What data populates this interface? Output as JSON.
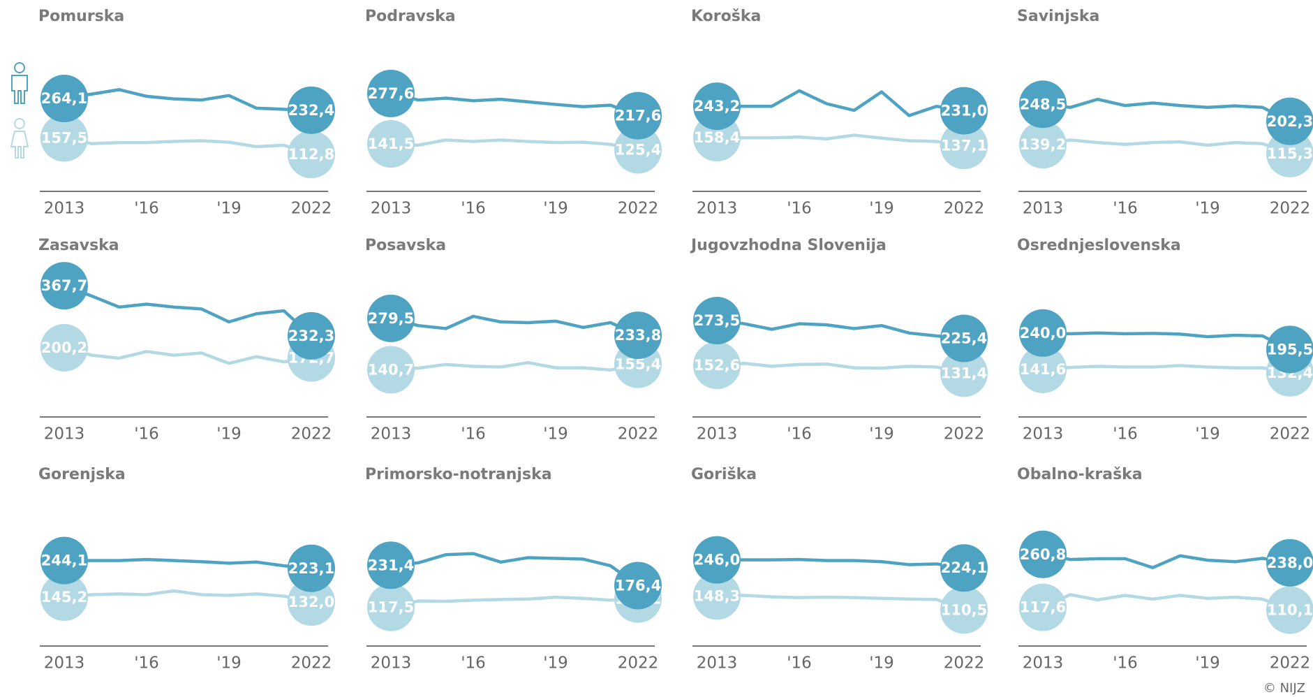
{
  "credit": "© NIJZ",
  "chart_data": [
    {
      "type": "line",
      "title": "Pomurska",
      "categories": [
        "2013",
        null,
        null,
        "'16",
        null,
        null,
        "'19",
        null,
        null,
        "2022"
      ],
      "ylim": [
        0,
        400
      ],
      "series": [
        {
          "color": "#4ea3c3",
          "values": [
            264.1,
            276,
            288,
            270,
            263,
            260,
            272,
            238,
            235,
            232.4
          ],
          "value_labels": [
            "264,1",
            null,
            null,
            null,
            null,
            null,
            null,
            null,
            null,
            "232,4"
          ]
        },
        {
          "color": "#b3d9e4",
          "values": [
            157.5,
            142,
            145,
            145,
            148,
            150,
            146,
            134,
            138,
            112.8
          ],
          "value_labels": [
            "157,5",
            null,
            null,
            null,
            null,
            null,
            null,
            null,
            null,
            "112,8"
          ]
        }
      ]
    },
    {
      "type": "line",
      "title": "Podravska",
      "categories": [
        "2013",
        null,
        null,
        "'16",
        null,
        null,
        "'19",
        null,
        null,
        "2022"
      ],
      "ylim": [
        0,
        400
      ],
      "series": [
        {
          "color": "#4ea3c3",
          "values": [
            277.6,
            260,
            265,
            258,
            262,
            255,
            248,
            242,
            246,
            217.6
          ],
          "value_labels": [
            "277,6",
            null,
            null,
            null,
            null,
            null,
            null,
            null,
            null,
            "217,6"
          ]
        },
        {
          "color": "#b3d9e4",
          "values": [
            141.5,
            138,
            152,
            148,
            152,
            148,
            145,
            146,
            140,
            125.4
          ],
          "value_labels": [
            "141,5",
            null,
            null,
            null,
            null,
            null,
            null,
            null,
            null,
            "125,4"
          ]
        }
      ]
    },
    {
      "type": "line",
      "title": "Koroška",
      "categories": [
        "2013",
        null,
        null,
        "'16",
        null,
        null,
        "'19",
        null,
        null,
        "2022"
      ],
      "ylim": [
        0,
        400
      ],
      "series": [
        {
          "color": "#4ea3c3",
          "values": [
            243.2,
            243,
            243,
            285,
            250,
            232,
            282,
            218,
            243,
            231.0
          ],
          "value_labels": [
            "243,2",
            null,
            null,
            null,
            null,
            null,
            null,
            null,
            null,
            "231,0"
          ]
        },
        {
          "color": "#b3d9e4",
          "values": [
            158.4,
            158,
            158,
            160,
            155,
            165,
            157,
            150,
            148,
            137.1
          ],
          "value_labels": [
            "158,4",
            null,
            null,
            null,
            null,
            null,
            null,
            null,
            null,
            "137,1"
          ]
        }
      ]
    },
    {
      "type": "line",
      "title": "Savinjska",
      "categories": [
        "2013",
        null,
        null,
        "'16",
        null,
        null,
        "'19",
        null,
        null,
        "2022"
      ],
      "ylim": [
        0,
        400
      ],
      "series": [
        {
          "color": "#4ea3c3",
          "values": [
            248.5,
            240,
            262,
            245,
            252,
            245,
            240,
            244,
            240,
            202.3
          ],
          "value_labels": [
            "248,5",
            null,
            null,
            null,
            null,
            null,
            null,
            null,
            null,
            "202,3"
          ]
        },
        {
          "color": "#b3d9e4",
          "values": [
            139.2,
            152,
            145,
            140,
            145,
            147,
            138,
            145,
            142,
            115.3
          ],
          "value_labels": [
            "139,2",
            null,
            null,
            null,
            null,
            null,
            null,
            null,
            null,
            "115,3"
          ]
        }
      ]
    },
    {
      "type": "line",
      "title": "Zasavska",
      "categories": [
        "2013",
        null,
        null,
        "'16",
        null,
        null,
        "'19",
        null,
        null,
        "2022"
      ],
      "ylim": [
        0,
        400
      ],
      "series": [
        {
          "color": "#4ea3c3",
          "values": [
            367.7,
            340,
            310,
            318,
            310,
            305,
            270,
            292,
            300,
            232.3
          ],
          "value_labels": [
            "367,7",
            null,
            null,
            null,
            null,
            null,
            null,
            null,
            null,
            "232,3"
          ]
        },
        {
          "color": "#b3d9e4",
          "values": [
            200.2,
            180,
            172,
            190,
            180,
            186,
            158,
            176,
            162,
            172.7
          ],
          "value_labels": [
            "200,2",
            null,
            null,
            null,
            null,
            null,
            null,
            null,
            null,
            "172,7"
          ]
        }
      ]
    },
    {
      "type": "line",
      "title": "Posavska",
      "categories": [
        "2013",
        null,
        null,
        "'16",
        null,
        null,
        "'19",
        null,
        null,
        "2022"
      ],
      "ylim": [
        0,
        400
      ],
      "series": [
        {
          "color": "#4ea3c3",
          "values": [
            279.5,
            260,
            252,
            285,
            270,
            268,
            272,
            255,
            268,
            233.8
          ],
          "value_labels": [
            "279,5",
            null,
            null,
            null,
            null,
            null,
            null,
            null,
            null,
            "233,8"
          ]
        },
        {
          "color": "#b3d9e4",
          "values": [
            140.7,
            145,
            155,
            150,
            148,
            160,
            146,
            146,
            140,
            155.4
          ],
          "value_labels": [
            "140,7",
            null,
            null,
            null,
            null,
            null,
            null,
            null,
            null,
            "155,4"
          ]
        }
      ]
    },
    {
      "type": "line",
      "title": "Jugovzhodna Slovenija",
      "categories": [
        "2013",
        null,
        null,
        "'16",
        null,
        null,
        "'19",
        null,
        null,
        "2022"
      ],
      "ylim": [
        0,
        400
      ],
      "series": [
        {
          "color": "#4ea3c3",
          "values": [
            273.5,
            265,
            250,
            265,
            262,
            252,
            260,
            240,
            232,
            225.4
          ],
          "value_labels": [
            "273,5",
            null,
            null,
            null,
            null,
            null,
            null,
            null,
            null,
            "225,4"
          ]
        },
        {
          "color": "#b3d9e4",
          "values": [
            152.6,
            158,
            150,
            155,
            156,
            146,
            145,
            150,
            148,
            131.4
          ],
          "value_labels": [
            "152,6",
            null,
            null,
            null,
            null,
            null,
            null,
            null,
            null,
            "131,4"
          ]
        }
      ]
    },
    {
      "type": "line",
      "title": "Osrednjeslovenska",
      "categories": [
        "2013",
        null,
        null,
        "'16",
        null,
        null,
        "'19",
        null,
        null,
        "2022"
      ],
      "ylim": [
        0,
        400
      ],
      "series": [
        {
          "color": "#4ea3c3",
          "values": [
            240.0,
            238,
            240,
            238,
            239,
            237,
            230,
            234,
            232,
            195.5
          ],
          "value_labels": [
            "240,0",
            null,
            null,
            null,
            null,
            null,
            null,
            null,
            null,
            "195,5"
          ]
        },
        {
          "color": "#b3d9e4",
          "values": [
            141.6,
            147,
            150,
            148,
            148,
            152,
            148,
            146,
            146,
            132.4
          ],
          "value_labels": [
            "141,6",
            null,
            null,
            null,
            null,
            null,
            null,
            null,
            null,
            "132,4"
          ]
        }
      ]
    },
    {
      "type": "line",
      "title": "Gorenjska",
      "categories": [
        "2013",
        null,
        null,
        "'16",
        null,
        null,
        "'19",
        null,
        null,
        "2022"
      ],
      "ylim": [
        0,
        400
      ],
      "series": [
        {
          "color": "#4ea3c3",
          "values": [
            244.1,
            244,
            244,
            247,
            244,
            241,
            237,
            240,
            230,
            223.1
          ],
          "value_labels": [
            "244,1",
            null,
            null,
            null,
            null,
            null,
            null,
            null,
            null,
            "223,1"
          ]
        },
        {
          "color": "#b3d9e4",
          "values": [
            145.2,
            152,
            154,
            152,
            162,
            152,
            150,
            154,
            148,
            132.0
          ],
          "value_labels": [
            "145,2",
            null,
            null,
            null,
            null,
            null,
            null,
            null,
            null,
            "132,0"
          ]
        }
      ]
    },
    {
      "type": "line",
      "title": "Primorsko-notranjska",
      "categories": [
        "2013",
        null,
        null,
        "'16",
        null,
        null,
        "'19",
        null,
        null,
        "2022"
      ],
      "ylim": [
        0,
        400
      ],
      "series": [
        {
          "color": "#4ea3c3",
          "values": [
            231.4,
            238,
            260,
            263,
            240,
            252,
            250,
            248,
            230,
            176.4
          ],
          "value_labels": [
            "231,4",
            null,
            null,
            null,
            null,
            null,
            null,
            null,
            null,
            "176,4"
          ]
        },
        {
          "color": "#b3d9e4",
          "values": [
            117.5,
            135,
            134,
            137,
            139,
            140,
            145,
            142,
            137,
            140.2
          ],
          "value_labels": [
            "117,5",
            null,
            null,
            null,
            null,
            null,
            null,
            null,
            null,
            "140,2"
          ]
        }
      ]
    },
    {
      "type": "line",
      "title": "Goriška",
      "categories": [
        "2013",
        null,
        null,
        "'16",
        null,
        null,
        "'19",
        null,
        null,
        "2022"
      ],
      "ylim": [
        0,
        400
      ],
      "series": [
        {
          "color": "#4ea3c3",
          "values": [
            246.0,
            246,
            246,
            247,
            244,
            244,
            241,
            233,
            235,
            224.1
          ],
          "value_labels": [
            "246,0",
            null,
            null,
            null,
            null,
            null,
            null,
            null,
            null,
            "224,1"
          ]
        },
        {
          "color": "#b3d9e4",
          "values": [
            148.3,
            150,
            146,
            144,
            145,
            144,
            142,
            140,
            139,
            110.5
          ],
          "value_labels": [
            "148,3",
            null,
            null,
            null,
            null,
            null,
            null,
            null,
            null,
            "110,5"
          ]
        }
      ]
    },
    {
      "type": "line",
      "title": "Obalno-kraška",
      "categories": [
        "2013",
        null,
        null,
        "'16",
        null,
        null,
        "'19",
        null,
        null,
        "2022"
      ],
      "ylim": [
        0,
        400
      ],
      "series": [
        {
          "color": "#4ea3c3",
          "values": [
            260.8,
            247,
            249,
            249,
            225,
            257,
            245,
            241,
            250,
            238.0
          ],
          "value_labels": [
            "260,8",
            null,
            null,
            null,
            null,
            null,
            null,
            null,
            null,
            "238,0"
          ]
        },
        {
          "color": "#b3d9e4",
          "values": [
            117.6,
            152,
            138,
            150,
            140,
            150,
            142,
            145,
            140,
            110.1
          ],
          "value_labels": [
            "117,6",
            null,
            null,
            null,
            null,
            null,
            null,
            null,
            null,
            "110,1"
          ]
        }
      ]
    }
  ]
}
